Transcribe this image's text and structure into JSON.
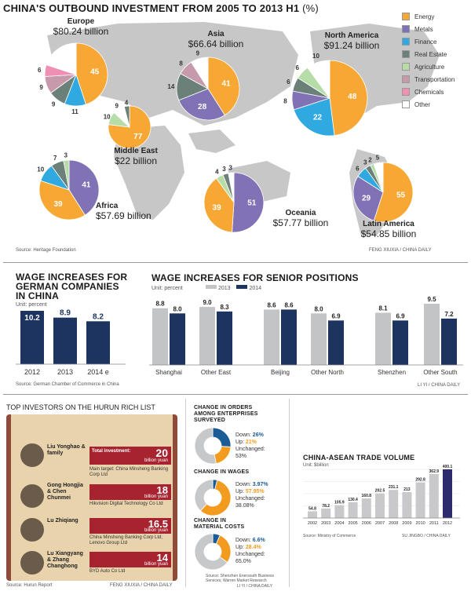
{
  "map": {
    "title": "CHINA'S OUTBOUND INVESTMENT FROM 2005 TO 2013 H1",
    "title_unit": "(%)",
    "source": "Source: Heritage Foundation",
    "credit": "FENG XIUXIA / CHINA DAILY",
    "legend": [
      {
        "label": "Energy",
        "color": "#f7a733"
      },
      {
        "label": "Metals",
        "color": "#8172b6"
      },
      {
        "label": "Finance",
        "color": "#2fa9e0"
      },
      {
        "label": "Real Estate",
        "color": "#6b8079"
      },
      {
        "label": "Agriculture",
        "color": "#b6dda7"
      },
      {
        "label": "Transportation",
        "color": "#c699ab"
      },
      {
        "label": "Chemicals",
        "color": "#ef8fb3"
      },
      {
        "label": "Other",
        "color": "#ffffff"
      }
    ]
  },
  "regions": [
    {
      "name": "Europe",
      "amount": "$80.24 billion"
    },
    {
      "name": "Asia",
      "amount": "$66.64 billion"
    },
    {
      "name": "North America",
      "amount": "$91.24 billion"
    },
    {
      "name": "Middle East",
      "amount": "$22 billion"
    },
    {
      "name": "Africa",
      "amount": "$57.69 billion"
    },
    {
      "name": "Oceania",
      "amount": "$57.77 billion"
    },
    {
      "name": "Latin America",
      "amount": "$54.85 billion"
    }
  ],
  "german": {
    "title_line1": "WAGE INCREASES FOR",
    "title_line2": "GERMAN COMPANIES",
    "title_line3": "IN CHINA",
    "unit": "Unit: percent",
    "source": "Source: German Chamber of Commerce in China"
  },
  "senior": {
    "title": "WAGE INCREASES FOR SENIOR POSITIONS",
    "unit": "Unit: percent",
    "legend_2013": "2013",
    "legend_2014": "2014",
    "credit": "LI YI / CHINA DAILY"
  },
  "hurun": {
    "title": "TOP INVESTORS ON THE HURUN RICH LIST",
    "source": "Source: Hurun Report",
    "credit": "FENG XIUXIA / CHINA DAILY",
    "investors": [
      {
        "name": "Liu Yonghao & family",
        "total_label": "Total investment:",
        "amount": "20",
        "unit": "billion yuan",
        "target": "Main target: China Minsheng Banking Corp Ltd"
      },
      {
        "name": "Gong Hongjia & Chen Chunmei",
        "amount": "18",
        "unit": "billion yuan",
        "target": "Hikvision Digital Technology Co Ltd"
      },
      {
        "name": "Lu Zhiqiang",
        "amount": "16.5",
        "unit": "billion yuan",
        "target": "China Minsheng Banking Corp Ltd; Lenovo Group Ltd"
      },
      {
        "name": "Lu Xiangyang & Zhang Changhong",
        "amount": "14",
        "unit": "billion yuan",
        "target": "BYD Auto Co Ltd"
      }
    ]
  },
  "donuts": {
    "source": "Source: Shenzhen Enersouth Business Services, Warren Market Research",
    "credit": "LI YI / CHINA DAILY",
    "items": [
      {
        "title1": "CHANGE IN ORDERS",
        "title2": "AMONG ENTERPRISES",
        "title3": "SURVEYED",
        "down_label": "Down:",
        "down": "26%",
        "up_label": "Up:",
        "up": "21%",
        "unch_label": "Unchanged:",
        "unch": "53%"
      },
      {
        "title1": "CHANGE IN WAGES",
        "title2": "",
        "title3": "",
        "down_label": "Down:",
        "down": "3.97%",
        "up_label": "Up:",
        "up": "57.95%",
        "unch_label": "Unchanged:",
        "unch": "38.08%"
      },
      {
        "title1": "CHANGE IN",
        "title2": "MATERIAL COSTS",
        "title3": "",
        "down_label": "Down:",
        "down": "6.6%",
        "up_label": "Up:",
        "up": "28.4%",
        "unch_label": "Unchanged:",
        "unch": "65.0%"
      }
    ]
  },
  "asean": {
    "title": "CHINA-ASEAN TRADE VOLUME",
    "unit": "Unit: $billion",
    "source": "Source: Ministry of Commerce",
    "credit": "SU JINGBO / CHINA DAILY"
  },
  "chart_data": [
    {
      "type": "pie",
      "title": "CHINA'S OUTBOUND INVESTMENT FROM 2005 TO 2013 H1 (%)",
      "categories": [
        "Energy",
        "Metals",
        "Finance",
        "Real Estate",
        "Agriculture",
        "Transportation",
        "Chemicals",
        "Other"
      ],
      "pies": [
        {
          "region": "Europe",
          "slices": [
            {
              "c": "Energy",
              "v": 45
            },
            {
              "c": "Finance",
              "v": 11
            },
            {
              "c": "Real Estate",
              "v": 9
            },
            {
              "c": "Transportation",
              "v": 9
            },
            {
              "c": "Chemicals",
              "v": 6
            },
            {
              "c": "Other",
              "v": 20
            }
          ]
        },
        {
          "region": "Asia",
          "slices": [
            {
              "c": "Energy",
              "v": 41
            },
            {
              "c": "Metals",
              "v": 28
            },
            {
              "c": "Real Estate",
              "v": 14
            },
            {
              "c": "Transportation",
              "v": 8
            },
            {
              "c": "Other",
              "v": 9
            }
          ]
        },
        {
          "region": "North America",
          "slices": [
            {
              "c": "Energy",
              "v": 48
            },
            {
              "c": "Finance",
              "v": 22
            },
            {
              "c": "Metals",
              "v": 8
            },
            {
              "c": "Real Estate",
              "v": 6
            },
            {
              "c": "Agriculture",
              "v": 6
            },
            {
              "c": "Other",
              "v": 10
            }
          ]
        },
        {
          "region": "Middle East",
          "slices": [
            {
              "c": "Energy",
              "v": 77
            },
            {
              "c": "Agriculture",
              "v": 10
            },
            {
              "c": "Other",
              "v": 9
            },
            {
              "c": "Real Estate",
              "v": 4
            }
          ]
        },
        {
          "region": "Africa",
          "slices": [
            {
              "c": "Metals",
              "v": 41
            },
            {
              "c": "Energy",
              "v": 39
            },
            {
              "c": "Finance",
              "v": 10
            },
            {
              "c": "Real Estate",
              "v": 7
            },
            {
              "c": "Agriculture",
              "v": 3
            }
          ]
        },
        {
          "region": "Oceania",
          "slices": [
            {
              "c": "Metals",
              "v": 51
            },
            {
              "c": "Energy",
              "v": 39
            },
            {
              "c": "Agriculture",
              "v": 4
            },
            {
              "c": "Real Estate",
              "v": 3
            },
            {
              "c": "Other",
              "v": 3
            }
          ]
        },
        {
          "region": "Latin America",
          "slices": [
            {
              "c": "Energy",
              "v": 55
            },
            {
              "c": "Metals",
              "v": 29
            },
            {
              "c": "Finance",
              "v": 6
            },
            {
              "c": "Real Estate",
              "v": 3
            },
            {
              "c": "Agriculture",
              "v": 2
            },
            {
              "c": "Other",
              "v": 5
            }
          ]
        }
      ]
    },
    {
      "type": "bar",
      "title": "WAGE INCREASES FOR GERMAN COMPANIES IN CHINA",
      "ylabel": "Unit: percent",
      "categories": [
        "2012",
        "2013",
        "2014 e"
      ],
      "values": [
        10.2,
        8.9,
        8.2
      ],
      "ylim": [
        0,
        10.2
      ]
    },
    {
      "type": "bar",
      "title": "WAGE INCREASES FOR SENIOR POSITIONS",
      "ylabel": "Unit: percent",
      "categories": [
        "Shanghai",
        "Other East",
        "Beijing",
        "Other North",
        "Shenzhen",
        "Other South"
      ],
      "series": [
        {
          "name": "2013",
          "values": [
            8.8,
            9.0,
            8.6,
            8.0,
            8.1,
            9.5
          ]
        },
        {
          "name": "2014",
          "values": [
            8.0,
            8.3,
            8.6,
            6.9,
            6.9,
            7.2
          ]
        }
      ],
      "ylim": [
        0,
        9.5
      ]
    },
    {
      "type": "pie",
      "title": "CHANGE IN ORDERS / WAGES / MATERIAL COSTS",
      "categories": [
        "Down",
        "Up",
        "Unchanged"
      ],
      "pies": [
        {
          "name": "CHANGE IN ORDERS AMONG ENTERPRISES SURVEYED",
          "values": [
            26,
            21,
            53
          ]
        },
        {
          "name": "CHANGE IN WAGES",
          "values": [
            3.97,
            57.95,
            38.08
          ]
        },
        {
          "name": "CHANGE IN MATERIAL COSTS",
          "values": [
            6.6,
            28.4,
            65.0
          ]
        }
      ]
    },
    {
      "type": "bar",
      "title": "CHINA-ASEAN TRADE VOLUME",
      "ylabel": "Unit: $billion",
      "categories": [
        "2002",
        "2003",
        "2004",
        "2005",
        "2006",
        "2007",
        "2008",
        "2009",
        "2010",
        "2011",
        "2012"
      ],
      "values": [
        54.8,
        78.2,
        105.9,
        130.4,
        160.8,
        202.5,
        231.1,
        213,
        292.8,
        362.9,
        400.1
      ],
      "ylim": [
        0,
        400.1
      ]
    }
  ]
}
